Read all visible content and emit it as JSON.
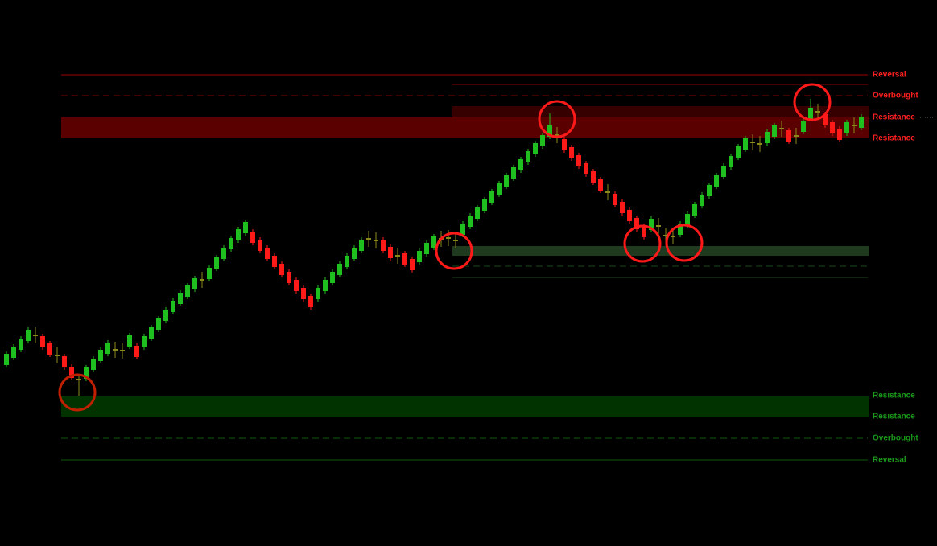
{
  "chart_data": {
    "type": "candlestick",
    "ylim": [
      0,
      679
    ],
    "colors": {
      "up": "#1fbf1f",
      "down": "#ff1a1a",
      "doji": "#8a8a1a"
    },
    "candles": [
      [
        225,
        242,
        222,
        239
      ],
      [
        234,
        251,
        231,
        248
      ],
      [
        244,
        261,
        241,
        258
      ],
      [
        255,
        272,
        252,
        269
      ],
      [
        261,
        272,
        252,
        263
      ],
      [
        261,
        264,
        244,
        247
      ],
      [
        252,
        255,
        235,
        238
      ],
      [
        236,
        247,
        227,
        238
      ],
      [
        236,
        239,
        219,
        222
      ],
      [
        223,
        226,
        206,
        209
      ],
      [
        206,
        214,
        187,
        208
      ],
      [
        208,
        225,
        205,
        222
      ],
      [
        219,
        236,
        216,
        233
      ],
      [
        230,
        247,
        227,
        244
      ],
      [
        239,
        256,
        236,
        253
      ],
      [
        243,
        254,
        234,
        245
      ],
      [
        242,
        253,
        233,
        244
      ],
      [
        248,
        265,
        245,
        262
      ],
      [
        249,
        252,
        232,
        235
      ],
      [
        247,
        264,
        244,
        261
      ],
      [
        258,
        275,
        255,
        272
      ],
      [
        269,
        286,
        266,
        283
      ],
      [
        280,
        297,
        277,
        294
      ],
      [
        291,
        308,
        288,
        305
      ],
      [
        301,
        318,
        298,
        315
      ],
      [
        310,
        327,
        307,
        324
      ],
      [
        319,
        336,
        316,
        333
      ],
      [
        330,
        341,
        321,
        332
      ],
      [
        332,
        349,
        329,
        346
      ],
      [
        345,
        362,
        342,
        359
      ],
      [
        357,
        374,
        354,
        371
      ],
      [
        369,
        386,
        366,
        383
      ],
      [
        380,
        397,
        377,
        394
      ],
      [
        389,
        406,
        386,
        403
      ],
      [
        391,
        394,
        374,
        377
      ],
      [
        381,
        384,
        364,
        367
      ],
      [
        371,
        374,
        354,
        357
      ],
      [
        361,
        364,
        344,
        347
      ],
      [
        351,
        354,
        334,
        337
      ],
      [
        341,
        344,
        324,
        327
      ],
      [
        331,
        334,
        314,
        317
      ],
      [
        321,
        324,
        304,
        307
      ],
      [
        311,
        314,
        294,
        297
      ],
      [
        307,
        324,
        304,
        321
      ],
      [
        317,
        334,
        314,
        331
      ],
      [
        327,
        344,
        324,
        341
      ],
      [
        337,
        354,
        334,
        351
      ],
      [
        347,
        364,
        344,
        361
      ],
      [
        357,
        374,
        354,
        371
      ],
      [
        367,
        384,
        364,
        381
      ],
      [
        381,
        392,
        372,
        383
      ],
      [
        379,
        390,
        370,
        381
      ],
      [
        381,
        384,
        364,
        367
      ],
      [
        372,
        375,
        355,
        358
      ],
      [
        360,
        371,
        351,
        362
      ],
      [
        364,
        367,
        347,
        350
      ],
      [
        357,
        360,
        340,
        343
      ],
      [
        353,
        370,
        350,
        367
      ],
      [
        363,
        380,
        360,
        377
      ],
      [
        371,
        388,
        368,
        385
      ],
      [
        381,
        392,
        372,
        383
      ],
      [
        382,
        393,
        373,
        384
      ],
      [
        379,
        390,
        370,
        381
      ],
      [
        387,
        404,
        384,
        401
      ],
      [
        397,
        414,
        394,
        411
      ],
      [
        407,
        424,
        404,
        421
      ],
      [
        417,
        434,
        414,
        431
      ],
      [
        427,
        444,
        424,
        441
      ],
      [
        437,
        454,
        434,
        451
      ],
      [
        447,
        464,
        444,
        461
      ],
      [
        457,
        474,
        454,
        471
      ],
      [
        467,
        484,
        464,
        481
      ],
      [
        477,
        494,
        474,
        491
      ],
      [
        487,
        504,
        484,
        501
      ],
      [
        497,
        514,
        494,
        511
      ],
      [
        509,
        538,
        506,
        523
      ],
      [
        510,
        521,
        501,
        512
      ],
      [
        506,
        509,
        489,
        492
      ],
      [
        496,
        499,
        479,
        482
      ],
      [
        486,
        489,
        469,
        472
      ],
      [
        476,
        479,
        459,
        462
      ],
      [
        466,
        469,
        449,
        452
      ],
      [
        456,
        459,
        439,
        442
      ],
      [
        439,
        450,
        430,
        441
      ],
      [
        438,
        441,
        421,
        424
      ],
      [
        428,
        431,
        411,
        414
      ],
      [
        418,
        421,
        401,
        404
      ],
      [
        408,
        411,
        391,
        394
      ],
      [
        398,
        401,
        381,
        384
      ],
      [
        393,
        410,
        390,
        407
      ],
      [
        397,
        408,
        388,
        399
      ],
      [
        385,
        396,
        376,
        387
      ],
      [
        384,
        395,
        375,
        386
      ],
      [
        387,
        404,
        384,
        401
      ],
      [
        399,
        416,
        396,
        413
      ],
      [
        411,
        428,
        408,
        425
      ],
      [
        423,
        440,
        420,
        437
      ],
      [
        435,
        452,
        432,
        449
      ],
      [
        447,
        464,
        444,
        461
      ],
      [
        459,
        476,
        456,
        473
      ],
      [
        471,
        488,
        468,
        485
      ],
      [
        483,
        500,
        480,
        497
      ],
      [
        493,
        510,
        490,
        507
      ],
      [
        501,
        512,
        492,
        503
      ],
      [
        499,
        510,
        490,
        501
      ],
      [
        501,
        518,
        498,
        515
      ],
      [
        509,
        526,
        506,
        523
      ],
      [
        518,
        529,
        509,
        520
      ],
      [
        517,
        520,
        500,
        503
      ],
      [
        509,
        520,
        500,
        511
      ],
      [
        515,
        532,
        512,
        529
      ],
      [
        531,
        556,
        528,
        545
      ],
      [
        539,
        550,
        530,
        541
      ],
      [
        537,
        540,
        520,
        523
      ],
      [
        527,
        530,
        510,
        513
      ],
      [
        519,
        522,
        502,
        505
      ],
      [
        513,
        530,
        510,
        527
      ],
      [
        522,
        533,
        513,
        524
      ],
      [
        520,
        537,
        517,
        534
      ]
    ],
    "zones": [
      {
        "low": 507,
        "high": 533,
        "color": "#5a0000",
        "start_index": 8,
        "label_low": "Resistance",
        "label_high": "Resistance",
        "label_color": "#ff2020"
      },
      {
        "low": 533,
        "high": 547,
        "color": "#360000",
        "start_index": 62
      },
      {
        "low": 161,
        "high": 187,
        "color": "#003300",
        "start_index": 8,
        "label_low": "Resistance",
        "label_high": "Resistance",
        "label_color": "#1a9a1a"
      },
      {
        "low": 361,
        "high": 373,
        "color": "#1f3a1f",
        "start_index": 62
      }
    ],
    "lines": [
      {
        "value": 586,
        "color": "#a00000",
        "style": "solid",
        "start_index": 8,
        "label": "Reversal",
        "label_color": "#ff2020"
      },
      {
        "value": 560,
        "color": "#8a0000",
        "style": "dashed",
        "start_index": 8,
        "label": "Overbought",
        "label_color": "#ff2020"
      },
      {
        "value": 574,
        "color": "#8a0000",
        "style": "solid",
        "start_index": 62
      },
      {
        "value": 134,
        "color": "#0d5a0d",
        "style": "dashed",
        "start_index": 8,
        "label": "Overbought",
        "label_color": "#1a9a1a"
      },
      {
        "value": 107,
        "color": "#0d5a0d",
        "style": "solid",
        "start_index": 8,
        "label": "Reversal",
        "label_color": "#1a9a1a"
      },
      {
        "value": 348,
        "color": "#1a4a1a",
        "style": "dashed",
        "start_index": 62
      },
      {
        "value": 334,
        "color": "#1a4a1a",
        "style": "solid",
        "start_index": 62
      }
    ]
  }
}
